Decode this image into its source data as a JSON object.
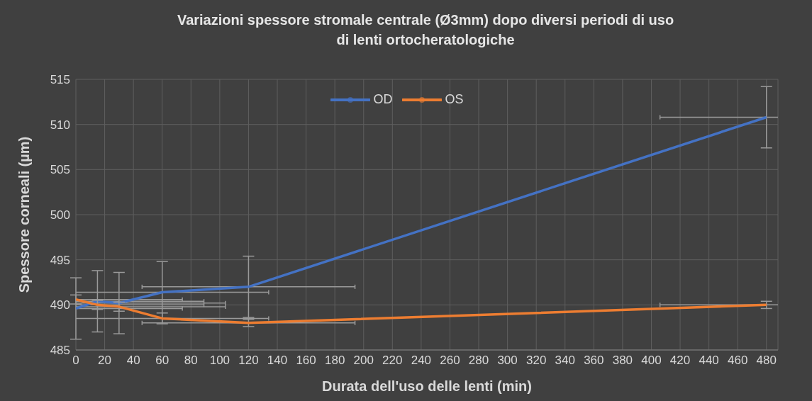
{
  "chart_data": {
    "type": "line",
    "title": "Variazioni spessore stromale centrale (Ø3mm) dopo diversi periodi di uso\ndi lenti ortocheratologiche",
    "xlabel": "Durata dell'uso delle lenti (min)",
    "ylabel": "Spessore corneali (µm)",
    "x": [
      0,
      15,
      30,
      60,
      120,
      480
    ],
    "series": [
      {
        "name": "OD",
        "color": "#4472c4",
        "values": [
          489.6,
          490.4,
          490.2,
          491.4,
          492.0,
          510.8
        ],
        "errors": [
          3.4,
          3.4,
          3.4,
          3.4,
          3.4,
          3.4
        ],
        "xerrors": [
          [
            0,
            74
          ],
          [
            0,
            89
          ],
          [
            0,
            104
          ],
          [
            0,
            134
          ],
          [
            46,
            194
          ],
          [
            406,
            488
          ]
        ]
      },
      {
        "name": "OS",
        "color": "#ed7d31",
        "values": [
          490.6,
          490.0,
          489.8,
          488.5,
          488.0,
          490.0
        ],
        "errors": [
          0.5,
          0.5,
          0.5,
          0.6,
          0.4,
          0.4
        ],
        "xerrors": [
          [
            0,
            74
          ],
          [
            0,
            89
          ],
          [
            0,
            104
          ],
          [
            0,
            134
          ],
          [
            46,
            194
          ],
          [
            406,
            488
          ]
        ]
      }
    ],
    "xlim": [
      0,
      488
    ],
    "xticks": [
      0,
      20,
      40,
      60,
      80,
      100,
      120,
      140,
      160,
      180,
      200,
      220,
      240,
      260,
      280,
      300,
      320,
      340,
      360,
      380,
      400,
      420,
      440,
      460,
      480
    ],
    "ylim": [
      485,
      515
    ],
    "yticks": [
      485,
      490,
      495,
      500,
      505,
      510,
      515
    ],
    "grid": true,
    "legend": "top",
    "marker": "none",
    "line_style": "solid"
  }
}
